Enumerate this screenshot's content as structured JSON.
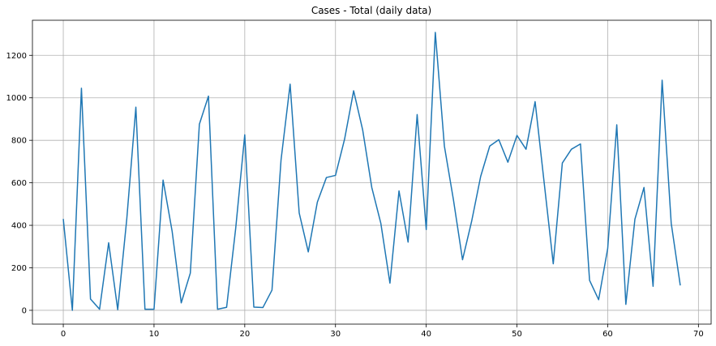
{
  "chart_data": {
    "type": "line",
    "title": "Cases - Total (daily data)",
    "xlabel": "",
    "ylabel": "",
    "xlim": [
      -3.4,
      71.4
    ],
    "ylim": [
      -65,
      1365
    ],
    "xticks": [
      0,
      10,
      20,
      30,
      40,
      50,
      60,
      70
    ],
    "yticks": [
      0,
      200,
      400,
      600,
      800,
      1000,
      1200
    ],
    "grid": true,
    "series": [
      {
        "color": "#1f77b4",
        "x": [
          0,
          1,
          2,
          3,
          4,
          5,
          6,
          7,
          8,
          9,
          10,
          11,
          12,
          13,
          14,
          15,
          16,
          17,
          18,
          19,
          20,
          21,
          22,
          23,
          24,
          25,
          26,
          27,
          28,
          29,
          30,
          31,
          32,
          33,
          34,
          35,
          36,
          37,
          38,
          39,
          40,
          41,
          42,
          43,
          44,
          45,
          46,
          47,
          48,
          49,
          50,
          51,
          52,
          53,
          54,
          55,
          56,
          57,
          58,
          59,
          60,
          61,
          62,
          63,
          64,
          65,
          66,
          67,
          68
        ],
        "y": [
          430,
          0,
          1045,
          53,
          5,
          318,
          3,
          431,
          956,
          5,
          5,
          613,
          371,
          35,
          175,
          876,
          1008,
          5,
          14,
          385,
          826,
          15,
          13,
          95,
          708,
          1064,
          458,
          275,
          509,
          625,
          635,
          805,
          1033,
          848,
          578,
          409,
          128,
          562,
          321,
          921,
          380,
          1308,
          773,
          520,
          238,
          418,
          630,
          773,
          803,
          697,
          823,
          758,
          982,
          600,
          219,
          693,
          758,
          783,
          141,
          50,
          291,
          873,
          28,
          429,
          578,
          113,
          1083,
          410,
          117
        ]
      }
    ]
  }
}
